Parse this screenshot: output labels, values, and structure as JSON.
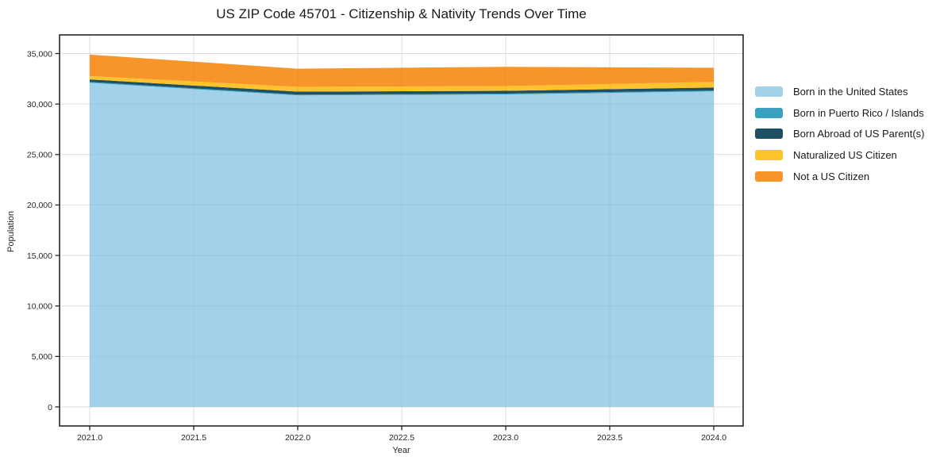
{
  "chart_data": {
    "type": "area",
    "stacked": true,
    "title": "US ZIP Code 45701 - Citizenship & Nativity Trends Over Time",
    "xlabel": "Year",
    "ylabel": "Population",
    "x": [
      2021,
      2022,
      2023,
      2024
    ],
    "x_tick_values": [
      2021.0,
      2021.5,
      2022.0,
      2022.5,
      2023.0,
      2023.5,
      2024.0
    ],
    "x_tick_labels": [
      "2021.0",
      "2021.5",
      "2022.0",
      "2022.5",
      "2023.0",
      "2023.5",
      "2024.0"
    ],
    "y_tick_values": [
      0,
      5000,
      10000,
      15000,
      20000,
      25000,
      30000,
      35000
    ],
    "y_tick_labels": [
      "0",
      "5,000",
      "10,000",
      "15,000",
      "20,000",
      "25,000",
      "30,000",
      "35,000"
    ],
    "xlim": [
      2020.86,
      2024.14
    ],
    "ylim": [
      -1900,
      36850
    ],
    "grid": true,
    "legend_position": "right",
    "series": [
      {
        "name": "Born in the United States",
        "color": "#a1d2e9",
        "values": [
          32100,
          30850,
          30950,
          31250
        ]
      },
      {
        "name": "Born in Puerto Rico / Islands",
        "color": "#3aa0c0",
        "values": [
          90,
          80,
          80,
          90
        ]
      },
      {
        "name": "Born Abroad of US Parent(s)",
        "color": "#1f4f63",
        "values": [
          250,
          300,
          280,
          300
        ]
      },
      {
        "name": "Naturalized US Citizen",
        "color": "#fcc32d",
        "values": [
          330,
          470,
          470,
          550
        ]
      },
      {
        "name": "Not a US Citizen",
        "color": "#f8952a",
        "values": [
          2130,
          1800,
          1900,
          1400
        ]
      }
    ],
    "totals": [
      34900,
      33500,
      33680,
      33590
    ],
    "colors": {
      "grid": "#e9e9e9",
      "spine": "#262626",
      "tick_text": "#262626",
      "background": "#ffffff"
    }
  }
}
